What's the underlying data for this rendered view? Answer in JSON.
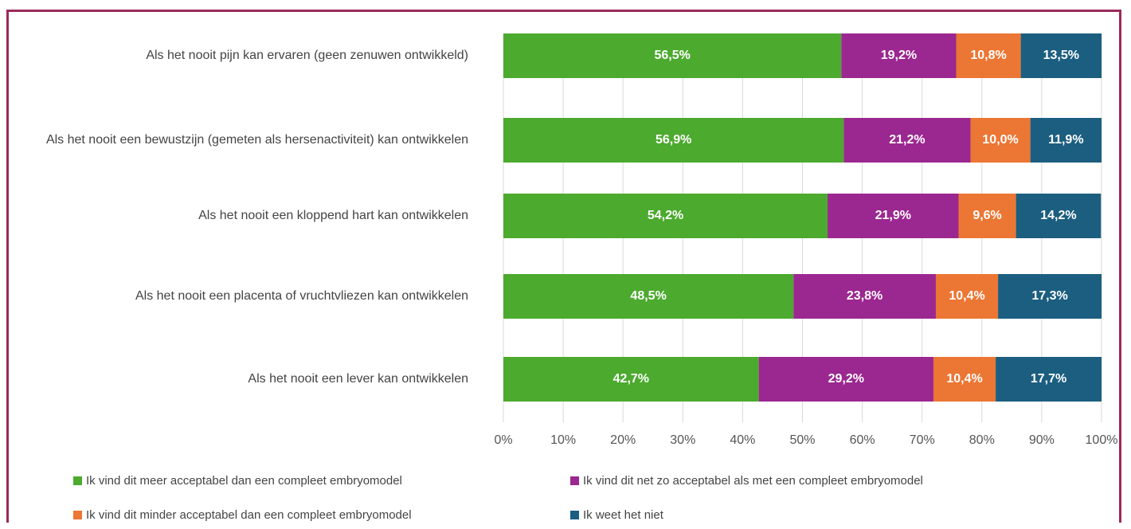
{
  "chart_data": {
    "type": "stacked-bar-horizontal",
    "categories": [
      "Als het nooit pijn kan ervaren (geen zenuwen ontwikkeld)",
      "Als het nooit een bewustzijn (gemeten als hersenactiviteit) kan ontwikkelen",
      "Als het nooit een kloppend hart kan ontwikkelen",
      "Als het nooit een placenta of vruchtvliezen kan ontwikkelen",
      "Als het nooit een lever kan ontwikkelen"
    ],
    "series": [
      {
        "name": "Ik vind dit meer acceptabel dan een compleet embryomodel",
        "color": "#4caa2e",
        "values": [
          56.5,
          56.9,
          54.2,
          48.5,
          42.7
        ],
        "value_labels": [
          "56,5%",
          "56,9%",
          "54,2%",
          "48,5%",
          "42,7%"
        ]
      },
      {
        "name": "Ik vind dit net zo acceptabel als met een compleet embryomodel",
        "color": "#9b2790",
        "values": [
          19.2,
          21.2,
          21.9,
          23.8,
          29.2
        ],
        "value_labels": [
          "19,2%",
          "21,2%",
          "21,9%",
          "23,8%",
          "29,2%"
        ]
      },
      {
        "name": "Ik vind dit minder acceptabel dan een compleet embryomodel",
        "color": "#ec7633",
        "values": [
          10.8,
          10.0,
          9.6,
          10.4,
          10.4
        ],
        "value_labels": [
          "10,8%",
          "10,0%",
          "9,6%",
          "10,4%",
          "10,4%"
        ]
      },
      {
        "name": "Ik weet het niet",
        "color": "#1b5e80",
        "values": [
          13.5,
          11.9,
          14.2,
          17.3,
          17.7
        ],
        "value_labels": [
          "13,5%",
          "11,9%",
          "14,2%",
          "17,3%",
          "17,7%"
        ]
      }
    ],
    "xlim": [
      0,
      100
    ],
    "xticks": [
      {
        "value": 0,
        "label": "0%"
      },
      {
        "value": 10,
        "label": "10%"
      },
      {
        "value": 20,
        "label": "20%"
      },
      {
        "value": 30,
        "label": "30%"
      },
      {
        "value": 40,
        "label": "40%"
      },
      {
        "value": 50,
        "label": "50%"
      },
      {
        "value": 60,
        "label": "60%"
      },
      {
        "value": 70,
        "label": "70%"
      },
      {
        "value": 80,
        "label": "80%"
      },
      {
        "value": 90,
        "label": "90%"
      },
      {
        "value": 100,
        "label": "100%"
      }
    ],
    "grid": true,
    "legend": "bottom"
  }
}
